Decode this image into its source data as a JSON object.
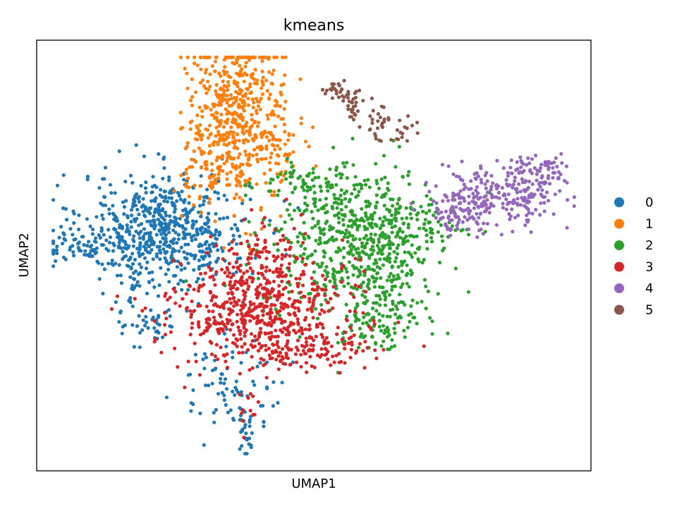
{
  "chart_data": {
    "type": "scatter",
    "title": "kmeans",
    "xlabel": "UMAP1",
    "ylabel": "UMAP2",
    "xlim": [
      0,
      100
    ],
    "ylim": [
      0,
      100
    ],
    "grid": false,
    "legend_position": "right",
    "series": [
      {
        "name": "0",
        "color": "#1f77b4",
        "regions": [
          {
            "cx": 23,
            "cy": 56,
            "sx": 7.5,
            "sy": 6.5,
            "n": 650
          },
          {
            "cx": 8,
            "cy": 52,
            "sx": 3.5,
            "sy": 1.8,
            "n": 60
          },
          {
            "cx": 20,
            "cy": 36,
            "sx": 2.5,
            "sy": 4.0,
            "n": 50
          },
          {
            "cx": 35,
            "cy": 20,
            "sx": 5.0,
            "sy": 5.0,
            "n": 80
          },
          {
            "cx": 38,
            "cy": 8,
            "sx": 0.9,
            "sy": 3.0,
            "n": 25
          }
        ]
      },
      {
        "name": "1",
        "color": "#ff7f0e",
        "regions": [
          {
            "cx": 36,
            "cy": 82,
            "sx": 4.5,
            "sy": 10.0,
            "n": 550
          },
          {
            "cx": 31,
            "cy": 70,
            "sx": 2.5,
            "sy": 3.0,
            "n": 40
          },
          {
            "cx": 45,
            "cy": 74,
            "sx": 2.0,
            "sy": 4.0,
            "n": 35
          }
        ]
      },
      {
        "name": "2",
        "color": "#2ca02c",
        "regions": [
          {
            "cx": 58,
            "cy": 52,
            "sx": 7.5,
            "sy": 9.0,
            "n": 650
          },
          {
            "cx": 62,
            "cy": 34,
            "sx": 4.0,
            "sy": 3.5,
            "n": 80
          },
          {
            "cx": 50,
            "cy": 66,
            "sx": 5.0,
            "sy": 3.0,
            "n": 70
          },
          {
            "cx": 70,
            "cy": 58,
            "sx": 3.0,
            "sy": 4.0,
            "n": 40
          }
        ]
      },
      {
        "name": "3",
        "color": "#d62728",
        "regions": [
          {
            "cx": 40,
            "cy": 37,
            "sx": 8.0,
            "sy": 6.0,
            "n": 550
          },
          {
            "cx": 40,
            "cy": 48,
            "sx": 4.0,
            "sy": 5.0,
            "n": 120
          },
          {
            "cx": 50,
            "cy": 28,
            "sx": 5.0,
            "sy": 2.5,
            "n": 90
          },
          {
            "cx": 38,
            "cy": 15,
            "sx": 1.0,
            "sy": 4.0,
            "n": 12
          }
        ]
      },
      {
        "name": "4",
        "color": "#9467bd",
        "regions": [
          {
            "cx": 84,
            "cy": 64,
            "sx": 5.5,
            "sy": 3.5,
            "n": 250
          },
          {
            "cx": 76,
            "cy": 60,
            "sx": 3.0,
            "sy": 2.5,
            "n": 60
          },
          {
            "cx": 92,
            "cy": 70,
            "sx": 2.5,
            "sy": 2.0,
            "n": 45
          }
        ]
      },
      {
        "name": "5",
        "color": "#8c564b",
        "regions": [
          {
            "cx": 55,
            "cy": 88,
            "sx": 2.0,
            "sy": 1.0,
            "n": 30
          },
          {
            "cx": 57,
            "cy": 84,
            "sx": 1.0,
            "sy": 2.0,
            "n": 20
          },
          {
            "cx": 62,
            "cy": 82,
            "sx": 1.0,
            "sy": 3.0,
            "n": 25
          },
          {
            "cx": 66,
            "cy": 79,
            "sx": 1.2,
            "sy": 1.5,
            "n": 15
          }
        ]
      }
    ]
  }
}
